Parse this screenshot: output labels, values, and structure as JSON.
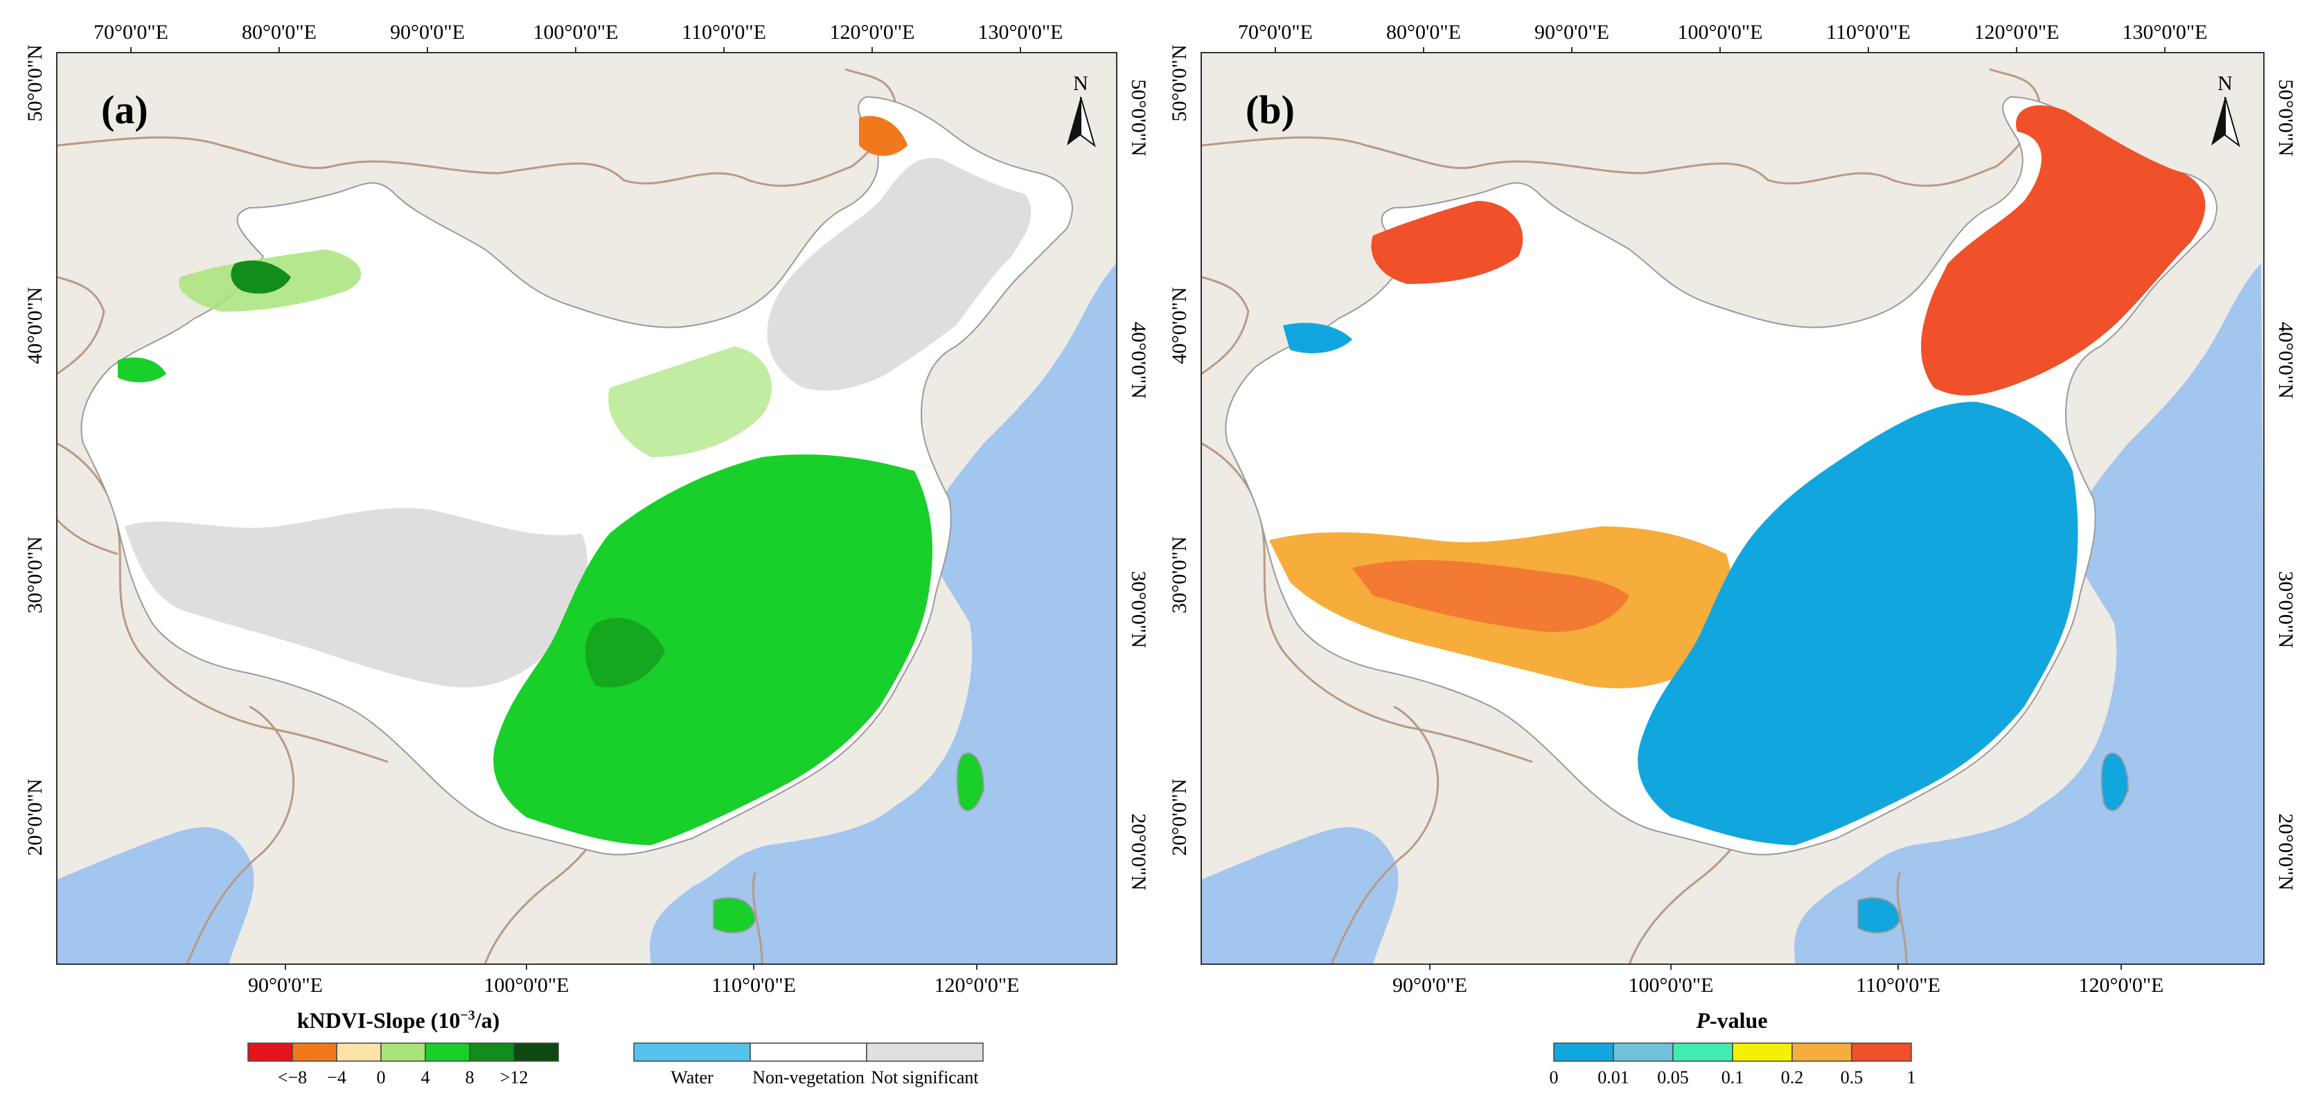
{
  "panels": [
    {
      "id": "a",
      "label": "(a)",
      "north": "N",
      "top_lon_labels": [
        "70°0'0\"E",
        "80°0'0\"E",
        "90°0'0\"E",
        "100°0'0\"E",
        "110°0'0\"E",
        "120°0'0\"E",
        "130°0'0\"E"
      ],
      "bottom_lon_labels": [
        "90°0'0\"E",
        "100°0'0\"E",
        "110°0'0\"E",
        "120°0'0\"E"
      ],
      "left_lat_labels": [
        "50°0'0\"N",
        "40°0'0\"N",
        "30°0'0\"N",
        "20°0'0\"N"
      ],
      "right_lat_labels": [
        "50°0'0\"N",
        "40°0'0\"N",
        "30°0'0\"N",
        "20°0'0\"N"
      ]
    },
    {
      "id": "b",
      "label": "(b)",
      "north": "N",
      "top_lon_labels": [
        "70°0'0\"E",
        "80°0'0\"E",
        "90°0'0\"E",
        "100°0'0\"E",
        "110°0'0\"E",
        "120°0'0\"E",
        "130°0'0\"E"
      ],
      "bottom_lon_labels": [
        "90°0'0\"E",
        "100°0'0\"E",
        "110°0'0\"E",
        "120°0'0\"E"
      ],
      "left_lat_labels": [
        "50°0'0\"N",
        "40°0'0\"N",
        "30°0'0\"N",
        "20°0'0\"N"
      ],
      "right_lat_labels": [
        "50°0'0\"N",
        "40°0'0\"N",
        "30°0'0\"N",
        "20°0'0\"N"
      ]
    }
  ],
  "legend_slope": {
    "title_main": "kNDVI-Slope (10",
    "title_sup": "−3",
    "title_end": "/a)",
    "colors": [
      "#e8141b",
      "#f07a1b",
      "#fbe3a5",
      "#a8e47a",
      "#19cf2a",
      "#128c1a",
      "#0c4a12"
    ],
    "tick_labels": [
      "<−8",
      "−4",
      "0",
      "4",
      "8",
      ">12"
    ]
  },
  "legend_class": {
    "colors": [
      "#56c3ee",
      "#ffffff",
      "#e0e0e0"
    ],
    "labels": [
      "Water",
      "Non-vegetation",
      "Not significant"
    ]
  },
  "legend_p": {
    "title_italic": "P",
    "title_rest": "-value",
    "colors": [
      "#12a6df",
      "#6ec2dc",
      "#41ecb0",
      "#f5f000",
      "#f6ad3c",
      "#f0502a"
    ],
    "tick_labels": [
      "0",
      "0.01",
      "0.05",
      "0.1",
      "0.2",
      "0.5",
      "1"
    ]
  },
  "map_colors": {
    "ocean": "#a2c6ee",
    "land": "#eeeae4",
    "border": "#b89a84"
  }
}
